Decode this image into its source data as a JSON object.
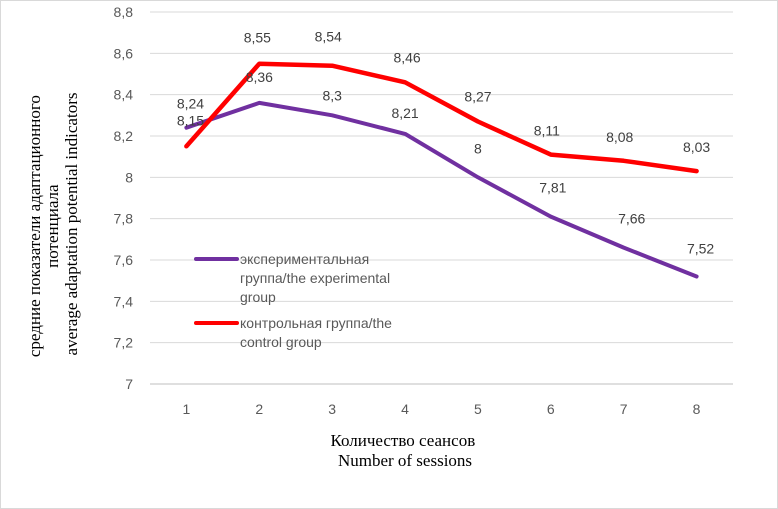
{
  "chart_data": {
    "type": "line",
    "categories": [
      "1",
      "2",
      "3",
      "4",
      "5",
      "6",
      "7",
      "8"
    ],
    "ylim": [
      7,
      8.8
    ],
    "yticks": [
      "7",
      "7,2",
      "7,4",
      "7,6",
      "7,8",
      "8",
      "8,2",
      "8,4",
      "8,6",
      "8,8"
    ],
    "ytick_values": [
      7,
      7.2,
      7.4,
      7.6,
      7.8,
      8,
      8.2,
      8.4,
      8.6,
      8.8
    ],
    "grid": true,
    "legend_position": "left",
    "xlabel": [
      "Количество сеансов",
      "Number of sessions"
    ],
    "ylabel": [
      "средние показатели адаптационного",
      "потенциала",
      "average adaptation potential indicators"
    ],
    "series": [
      {
        "name": [
          "экспериментальная",
          "группа/the experimental",
          "group"
        ],
        "color": "#7030a0",
        "values": [
          8.24,
          8.36,
          8.3,
          8.21,
          8,
          7.81,
          7.66,
          7.52
        ],
        "labels": [
          "8,24",
          "8,36",
          "8,3",
          "8,21",
          "8",
          "7,81",
          "7,66",
          "7,52"
        ]
      },
      {
        "name": [
          "контрольная группа/the",
          "control group"
        ],
        "color": "#ff0000",
        "values": [
          8.15,
          8.55,
          8.54,
          8.46,
          8.27,
          8.11,
          8.08,
          8.03
        ],
        "labels": [
          "8,15",
          "8,55",
          "8,54",
          "8,46",
          "8,27",
          "8,11",
          "8,08",
          "8,03"
        ]
      }
    ]
  }
}
